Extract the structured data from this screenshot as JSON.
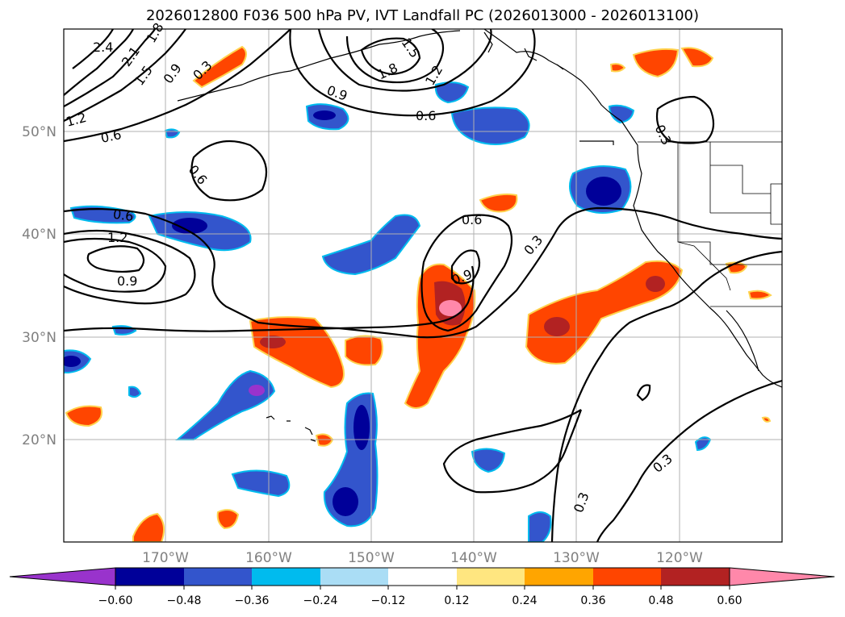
{
  "title": "2026012800 F036 500 hPa PV, IVT Landfall PC (2026013000 - 2026013100)",
  "map": {
    "lon_labels": [
      "170°W",
      "160°W",
      "150°W",
      "140°W",
      "130°W",
      "120°W"
    ],
    "lat_labels": [
      "50°N",
      "40°N",
      "30°N",
      "20°N"
    ]
  },
  "colorbar": {
    "colors": [
      "#9933cc",
      "#000099",
      "#3355cc",
      "#00bbee",
      "#aaddf5",
      "#ffffff",
      "#ffe680",
      "#ffa500",
      "#ff4500",
      "#b22222",
      "#ff88aa"
    ],
    "tick_labels": [
      "−0.60",
      "−0.48",
      "−0.36",
      "−0.24",
      "−0.12",
      "0.12",
      "0.24",
      "0.36",
      "0.48",
      "0.60"
    ]
  },
  "contour_labels": [
    "2.4",
    "2.1",
    "1.8",
    "1.5",
    "0.9",
    "0.3",
    "1.2",
    "0.6",
    "1.8",
    "1.5",
    "1.2",
    "0.9",
    "0.6",
    "0.3",
    "0.6",
    "0.6",
    "1.2",
    "0.9",
    "0.6",
    "0.9",
    "0.3",
    "0.3",
    "0.3"
  ]
}
